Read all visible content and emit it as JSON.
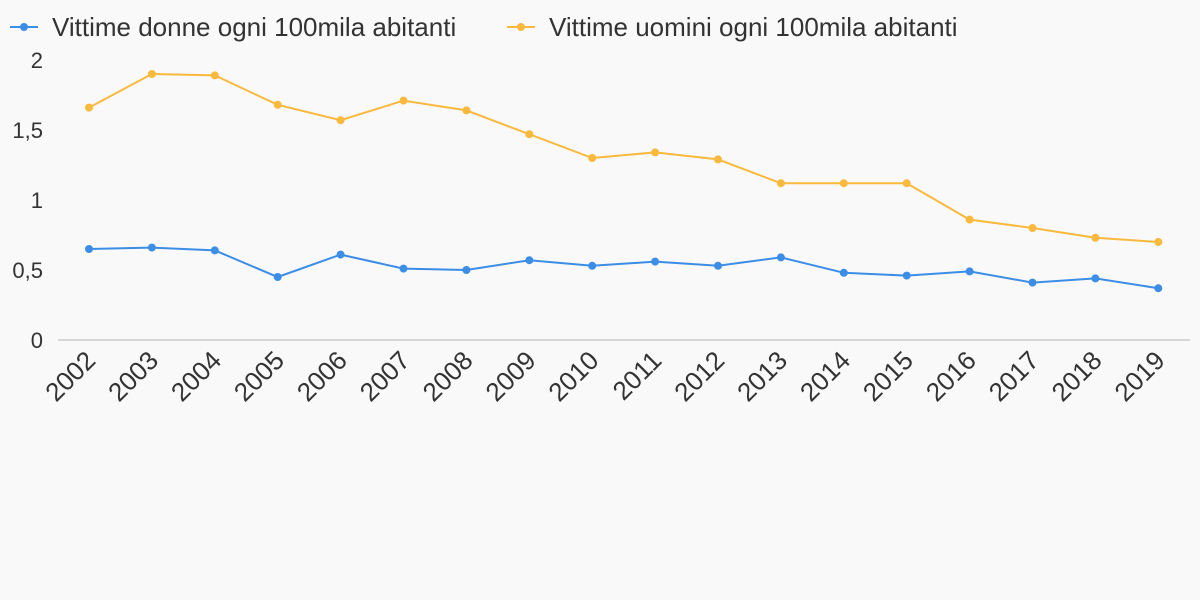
{
  "chart_data": {
    "type": "line",
    "x": [
      "2002",
      "2003",
      "2004",
      "2005",
      "2006",
      "2007",
      "2008",
      "2009",
      "2010",
      "2011",
      "2012",
      "2013",
      "2014",
      "2015",
      "2016",
      "2017",
      "2018",
      "2019"
    ],
    "series": [
      {
        "name": "Vittime donne ogni 100mila abitanti",
        "color": "#3c8de6",
        "values": [
          0.65,
          0.66,
          0.64,
          0.45,
          0.61,
          0.51,
          0.5,
          0.57,
          0.53,
          0.56,
          0.53,
          0.59,
          0.48,
          0.46,
          0.49,
          0.41,
          0.44,
          0.37
        ]
      },
      {
        "name": "Vittime uomini ogni 100mila abitanti",
        "color": "#f9b93d",
        "values": [
          1.66,
          1.9,
          1.89,
          1.68,
          1.57,
          1.71,
          1.64,
          1.47,
          1.3,
          1.34,
          1.29,
          1.12,
          1.12,
          1.12,
          0.86,
          0.8,
          0.73,
          0.7
        ]
      }
    ],
    "ylim": [
      0,
      2
    ],
    "yticks": [
      0,
      0.5,
      1,
      1.5,
      2
    ],
    "ytick_labels": [
      "0",
      "0,5",
      "1",
      "1,5",
      "2"
    ],
    "legend_position": "top-left",
    "grid": false
  }
}
